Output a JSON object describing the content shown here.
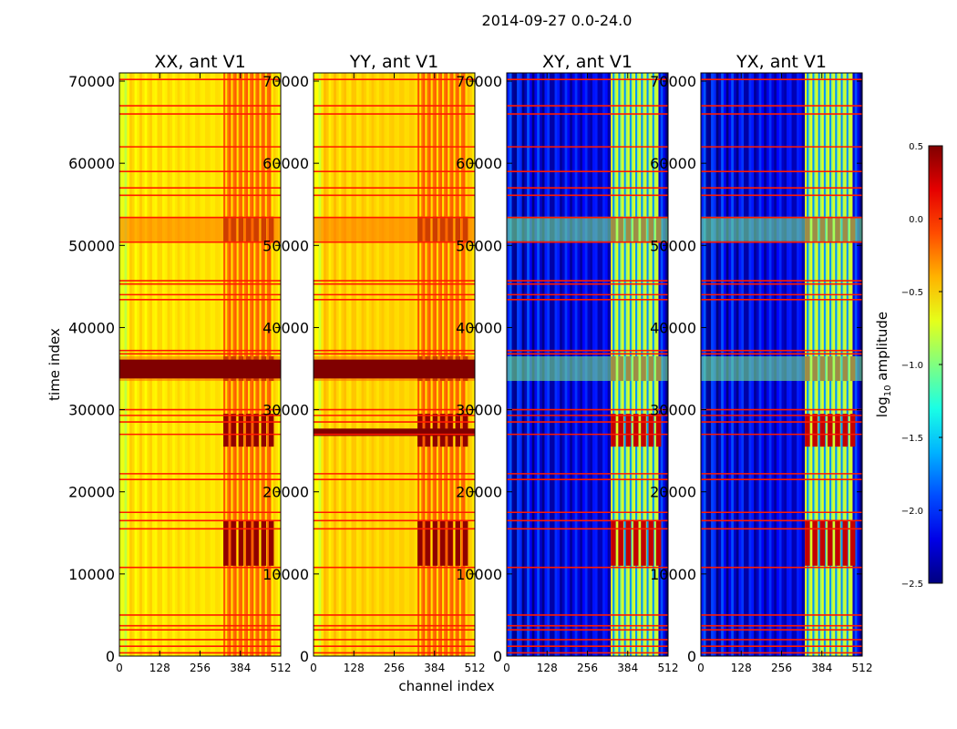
{
  "figure_title": "2014-09-27 0.0-24.0",
  "chart_data": {
    "type": "heatmap",
    "suptitle": "2014-09-27 0.0-24.0",
    "xlabel": "channel index",
    "ylabel": "time index",
    "x_range": [
      0,
      512
    ],
    "y_range": [
      0,
      71000
    ],
    "x_ticks": [
      "0",
      "128",
      "256",
      "384",
      "512"
    ],
    "y_ticks": [
      "0",
      "10000",
      "20000",
      "30000",
      "40000",
      "50000",
      "60000",
      "70000"
    ],
    "colorbar": {
      "label": "log10 amplitude",
      "label_base": "log",
      "label_sub": "10",
      "label_rest": " amplitude",
      "range": [
        -2.5,
        0.5
      ],
      "colormap": "jet",
      "ticks": [
        "0.5",
        "0.0",
        "−0.5",
        "−1.0",
        "−1.5",
        "−2.0",
        "−2.5"
      ]
    },
    "panels": [
      {
        "title": "XX, ant V1",
        "kind": "parallel",
        "base_level_log10": -0.55,
        "strong_channel_band": [
          330,
          480
        ],
        "high_bands_time": [
          [
            25500,
            29500
          ],
          [
            11000,
            16500
          ],
          [
            50500,
            53500
          ],
          [
            33500,
            36500
          ]
        ],
        "saturated_rows_time": [
          [
            33800,
            36100
          ]
        ],
        "flagged_rows_time": [
          400,
          1200,
          2000,
          3200,
          3700,
          5000,
          10800,
          15500,
          16500,
          17500,
          21500,
          22200,
          27000,
          28500,
          29300,
          30000,
          36800,
          37200,
          43400,
          44000,
          45300,
          45700,
          50400,
          53400,
          56100,
          57000,
          59000,
          62000,
          66000,
          67000,
          70200
        ]
      },
      {
        "title": "YY, ant V1",
        "kind": "parallel",
        "base_level_log10": -0.5,
        "strong_channel_band": [
          330,
          480
        ],
        "high_bands_time": [
          [
            25500,
            29500
          ],
          [
            11000,
            16500
          ],
          [
            50500,
            53500
          ],
          [
            33500,
            36500
          ]
        ],
        "saturated_rows_time": [
          [
            33800,
            36100
          ],
          [
            26800,
            27700
          ]
        ],
        "flagged_rows_time": [
          400,
          1200,
          2000,
          3200,
          3700,
          5000,
          10800,
          15500,
          16500,
          17500,
          21500,
          22200,
          27000,
          28500,
          29300,
          30000,
          36800,
          37200,
          43400,
          44000,
          45300,
          45700,
          50400,
          53400,
          56100,
          57000,
          59000,
          62000,
          66000,
          67000,
          70200
        ]
      },
      {
        "title": "XY, ant V1",
        "kind": "cross",
        "base_level_log10": -2.2,
        "strong_channel_band": [
          330,
          480
        ],
        "high_bands_time": [
          [
            25500,
            29500
          ],
          [
            11000,
            16500
          ],
          [
            50500,
            53500
          ],
          [
            33500,
            36500
          ]
        ],
        "saturated_rows_time": [],
        "flagged_rows_time": [
          400,
          1200,
          2000,
          3200,
          3700,
          5000,
          10800,
          15500,
          16500,
          17500,
          21500,
          22200,
          27000,
          28500,
          29300,
          30000,
          36800,
          37200,
          43400,
          44000,
          45300,
          45700,
          50400,
          53400,
          56100,
          57000,
          59000,
          62000,
          66000,
          67000,
          70200
        ]
      },
      {
        "title": "YX, ant V1",
        "kind": "cross",
        "base_level_log10": -2.2,
        "strong_channel_band": [
          330,
          480
        ],
        "high_bands_time": [
          [
            25500,
            29500
          ],
          [
            11000,
            16500
          ],
          [
            50500,
            53500
          ],
          [
            33500,
            36500
          ]
        ],
        "saturated_rows_time": [],
        "flagged_rows_time": [
          400,
          1200,
          2000,
          3200,
          3700,
          5000,
          10800,
          15500,
          16500,
          17500,
          21500,
          22200,
          27000,
          28500,
          29300,
          30000,
          36800,
          37200,
          43400,
          44000,
          45300,
          45700,
          50400,
          53400,
          56100,
          57000,
          59000,
          62000,
          66000,
          67000,
          70200
        ]
      }
    ]
  }
}
